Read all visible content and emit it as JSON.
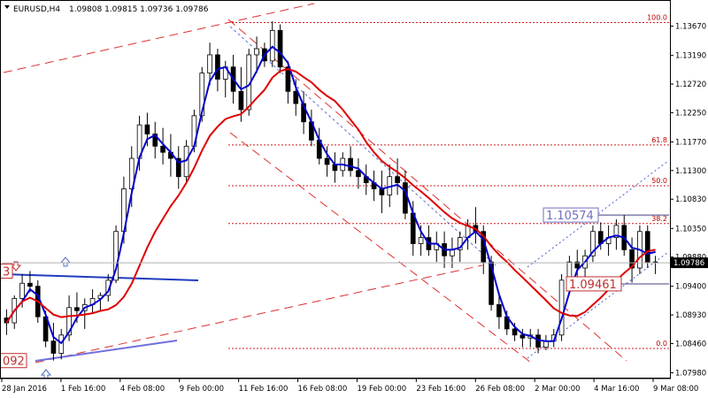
{
  "header": {
    "symbol": "EURUSD,H4",
    "ohlc": "1.09808 1.09815 1.09736 1.09786"
  },
  "chart_data": {
    "type": "candlestick",
    "y_range": [
      1.079,
      1.141
    ],
    "y_ticks": [
      "1.13670",
      "1.13190",
      "1.12720",
      "1.12250",
      "1.11770",
      "1.11300",
      "1.10830",
      "1.10350",
      "1.09880",
      "1.09400",
      "1.08930",
      "1.08460",
      "1.07980"
    ],
    "x_ticks": [
      "28 Jan 2016",
      "1 Feb 16:00",
      "4 Feb 08:00",
      "9 Feb 00:00",
      "11 Feb 16:00",
      "16 Feb 08:00",
      "19 Feb 00:00",
      "23 Feb 16:00",
      "26 Feb 08:00",
      "2 Mar 00:00",
      "4 Mar 16:00",
      "9 Mar 08:00"
    ],
    "current_price": "1.09786",
    "fibonacci_levels": [
      {
        "label": "100.0",
        "price": 1.1373
      },
      {
        "label": "61.8",
        "price": 1.1172
      },
      {
        "label": "50.0",
        "price": 1.1105
      },
      {
        "label": "38.2",
        "price": 1.1043
      },
      {
        "label": "0.0",
        "price": 1.0838
      }
    ],
    "price_labels": [
      {
        "text": "1.10574",
        "price": 1.1057
      },
      {
        "text": "1.09461",
        "price": 1.0944
      },
      {
        "text": "092",
        "price": 1.0818
      },
      {
        "text": "3",
        "price": 1.0965
      }
    ],
    "series": [
      {
        "name": "",
        "color": "#0000cc",
        "kind": "fast_ma"
      },
      {
        "name": "",
        "color": "#e00000",
        "kind": "slow_ma"
      }
    ],
    "candles": [
      [
        1.0888,
        1.0902,
        1.086,
        1.088
      ],
      [
        1.088,
        1.0925,
        1.087,
        1.092
      ],
      [
        1.092,
        1.096,
        1.0905,
        1.0945
      ],
      [
        1.0945,
        1.0965,
        1.093,
        1.094
      ],
      [
        1.094,
        1.095,
        1.088,
        1.089
      ],
      [
        1.089,
        1.09,
        1.084,
        1.085
      ],
      [
        1.085,
        1.088,
        1.0818,
        1.083
      ],
      [
        1.083,
        1.087,
        1.082,
        1.086
      ],
      [
        1.086,
        1.0925,
        1.085,
        1.0905
      ],
      [
        1.0905,
        1.093,
        1.088,
        1.09
      ],
      [
        1.09,
        1.092,
        1.087,
        1.091
      ],
      [
        1.091,
        1.0935,
        1.0895,
        1.092
      ],
      [
        1.092,
        1.093,
        1.09,
        1.0925
      ],
      [
        1.0925,
        1.096,
        1.0915,
        1.095
      ],
      [
        1.095,
        1.104,
        1.0945,
        1.103
      ],
      [
        1.103,
        1.112,
        1.101,
        1.11
      ],
      [
        1.11,
        1.117,
        1.107,
        1.115
      ],
      [
        1.115,
        1.122,
        1.113,
        1.1205
      ],
      [
        1.1205,
        1.1225,
        1.117,
        1.119
      ],
      [
        1.119,
        1.121,
        1.115,
        1.117
      ],
      [
        1.117,
        1.12,
        1.114,
        1.116
      ],
      [
        1.116,
        1.119,
        1.112,
        1.115
      ],
      [
        1.115,
        1.117,
        1.11,
        1.112
      ],
      [
        1.112,
        1.118,
        1.111,
        1.117
      ],
      [
        1.117,
        1.123,
        1.116,
        1.122
      ],
      [
        1.122,
        1.13,
        1.121,
        1.129
      ],
      [
        1.129,
        1.134,
        1.127,
        1.132
      ],
      [
        1.132,
        1.133,
        1.126,
        1.128
      ],
      [
        1.128,
        1.131,
        1.125,
        1.13
      ],
      [
        1.13,
        1.132,
        1.124,
        1.126
      ],
      [
        1.126,
        1.13,
        1.121,
        1.123
      ],
      [
        1.123,
        1.133,
        1.122,
        1.132
      ],
      [
        1.132,
        1.135,
        1.129,
        1.133
      ],
      [
        1.133,
        1.134,
        1.13,
        1.131
      ],
      [
        1.131,
        1.1375,
        1.13,
        1.136
      ],
      [
        1.136,
        1.137,
        1.129,
        1.13
      ],
      [
        1.13,
        1.131,
        1.124,
        1.126
      ],
      [
        1.126,
        1.128,
        1.122,
        1.124
      ],
      [
        1.124,
        1.126,
        1.119,
        1.121
      ],
      [
        1.121,
        1.123,
        1.117,
        1.118
      ],
      [
        1.118,
        1.12,
        1.114,
        1.115
      ],
      [
        1.115,
        1.117,
        1.112,
        1.114
      ],
      [
        1.114,
        1.116,
        1.111,
        1.113
      ],
      [
        1.113,
        1.116,
        1.112,
        1.115
      ],
      [
        1.115,
        1.117,
        1.112,
        1.113
      ],
      [
        1.113,
        1.115,
        1.11,
        1.112
      ],
      [
        1.112,
        1.114,
        1.109,
        1.111
      ],
      [
        1.111,
        1.113,
        1.108,
        1.11
      ],
      [
        1.11,
        1.113,
        1.106,
        1.109
      ],
      [
        1.109,
        1.114,
        1.107,
        1.112
      ],
      [
        1.112,
        1.115,
        1.109,
        1.111
      ],
      [
        1.111,
        1.113,
        1.105,
        1.106
      ],
      [
        1.106,
        1.108,
        1.099,
        1.101
      ],
      [
        1.101,
        1.104,
        1.099,
        1.102
      ],
      [
        1.102,
        1.104,
        1.099,
        1.1
      ],
      [
        1.1,
        1.103,
        1.098,
        1.101
      ],
      [
        1.101,
        1.103,
        1.097,
        1.099
      ],
      [
        1.099,
        1.102,
        1.097,
        1.1
      ],
      [
        1.1,
        1.103,
        1.098,
        1.102
      ],
      [
        1.102,
        1.105,
        1.1,
        1.104
      ],
      [
        1.104,
        1.107,
        1.101,
        1.103
      ],
      [
        1.103,
        1.104,
        1.096,
        1.098
      ],
      [
        1.098,
        1.099,
        1.09,
        1.091
      ],
      [
        1.091,
        1.093,
        1.087,
        1.089
      ],
      [
        1.089,
        1.09,
        1.086,
        1.087
      ],
      [
        1.087,
        1.088,
        1.085,
        1.086
      ],
      [
        1.086,
        1.087,
        1.084,
        1.0855
      ],
      [
        1.0855,
        1.087,
        1.084,
        1.086
      ],
      [
        1.086,
        1.087,
        1.083,
        1.084
      ],
      [
        1.084,
        1.086,
        1.0835,
        1.085
      ],
      [
        1.085,
        1.087,
        1.084,
        1.086
      ],
      [
        1.086,
        1.096,
        1.085,
        1.095
      ],
      [
        1.095,
        1.099,
        1.093,
        1.098
      ],
      [
        1.098,
        1.1,
        1.095,
        1.097
      ],
      [
        1.097,
        1.1,
        1.0946,
        1.099
      ],
      [
        1.099,
        1.104,
        1.098,
        1.103
      ],
      [
        1.103,
        1.1045,
        1.1,
        1.101
      ],
      [
        1.101,
        1.104,
        1.099,
        1.102
      ],
      [
        1.102,
        1.105,
        1.1,
        1.104
      ],
      [
        1.104,
        1.1057,
        1.099,
        1.1
      ],
      [
        1.1,
        1.102,
        1.0946,
        1.097
      ],
      [
        1.097,
        1.104,
        1.096,
        1.103
      ],
      [
        1.103,
        1.104,
        1.097,
        1.098
      ],
      [
        1.098,
        1.099,
        1.096,
        1.0979
      ]
    ]
  }
}
